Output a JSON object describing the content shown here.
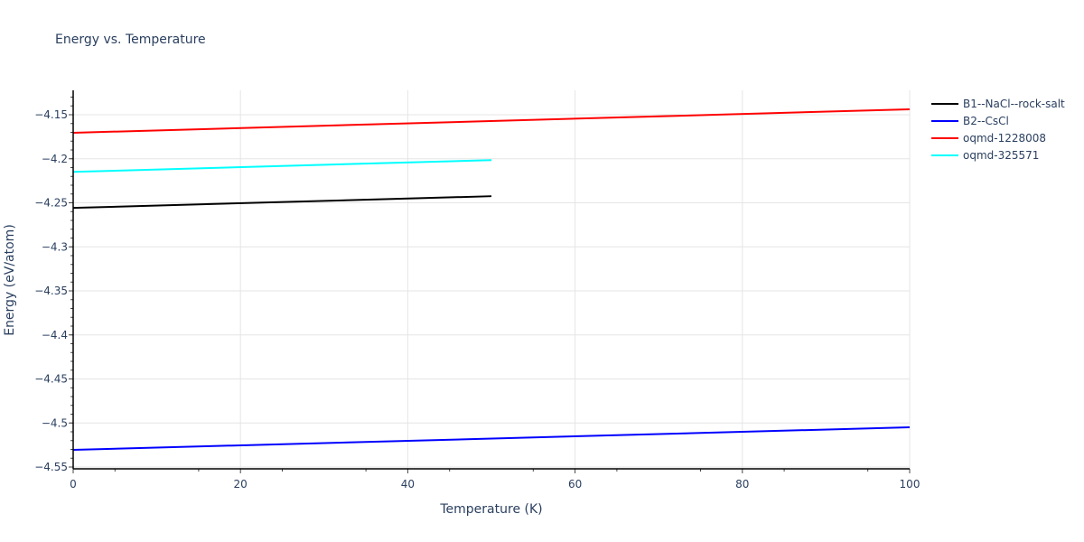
{
  "chart_data": {
    "type": "line",
    "title": "Energy vs. Temperature",
    "xlabel": "Temperature (K)",
    "ylabel": "Energy (eV/atom)",
    "xlim": [
      0,
      100
    ],
    "ylim": [
      -4.552,
      -4.122
    ],
    "xticks": [
      0,
      20,
      40,
      60,
      80,
      100
    ],
    "xtick_labels": [
      "0",
      "20",
      "40",
      "60",
      "80",
      "100"
    ],
    "yticks": [
      -4.15,
      -4.2,
      -4.25,
      -4.3,
      -4.35,
      -4.4,
      -4.45,
      -4.5,
      -4.55
    ],
    "ytick_labels": [
      "−4.15",
      "−4.2",
      "−4.25",
      "−4.3",
      "−4.35",
      "−4.4",
      "−4.45",
      "−4.5",
      "−4.55"
    ],
    "grid": true,
    "legend_position": "right-top",
    "series": [
      {
        "name": "B1--NaCl--rock-salt",
        "color": "#000000",
        "x": [
          0,
          50
        ],
        "y": [
          -4.2558,
          -4.2425
        ]
      },
      {
        "name": "B2--CsCl",
        "color": "#0000ff",
        "x": [
          0,
          100
        ],
        "y": [
          -4.5305,
          -4.5049
        ]
      },
      {
        "name": "oqmd-1228008",
        "color": "#ff0000",
        "x": [
          0,
          100
        ],
        "y": [
          -4.1705,
          -4.1438
        ]
      },
      {
        "name": "oqmd-325571",
        "color": "#00ffff",
        "x": [
          0,
          50
        ],
        "y": [
          -4.2149,
          -4.2015
        ]
      }
    ]
  }
}
